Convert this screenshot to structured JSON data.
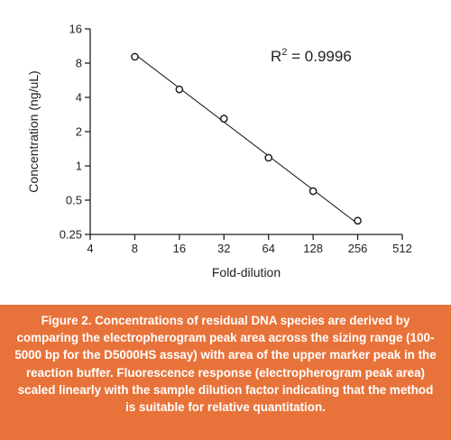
{
  "chart_data": {
    "type": "scatter",
    "x_scale": "log2",
    "y_scale": "log2",
    "xlabel": "Fold-dilution",
    "ylabel": "Concentration (ng/uL)",
    "xlim": [
      4,
      512
    ],
    "ylim": [
      0.25,
      16
    ],
    "x_ticks": [
      4,
      8,
      16,
      32,
      64,
      128,
      256,
      512
    ],
    "y_ticks": [
      0.25,
      0.5,
      1,
      2,
      4,
      8,
      16
    ],
    "x_tick_labels": [
      "4",
      "8",
      "16",
      "32",
      "64",
      "128",
      "256",
      "512"
    ],
    "y_tick_labels": [
      "0.25",
      "0.5",
      "1",
      "2",
      "4",
      "8",
      "16"
    ],
    "points": [
      {
        "x": 8,
        "y": 9.1
      },
      {
        "x": 16,
        "y": 4.7
      },
      {
        "x": 32,
        "y": 2.6
      },
      {
        "x": 64,
        "y": 1.18
      },
      {
        "x": 128,
        "y": 0.6
      },
      {
        "x": 256,
        "y": 0.33
      }
    ],
    "fit_line": {
      "x": [
        8,
        256
      ],
      "y": [
        9.6,
        0.31
      ]
    },
    "annotation": {
      "text": "R",
      "superscript": "2",
      "value_text": " = 0.9996"
    },
    "grid": false
  },
  "caption": "Figure 2. Concentrations of residual DNA species are derived by comparing the electropherogram peak area across the sizing range (100-5000 bp for the D5000HS assay) with area of the upper marker peak in the reaction buffer. Fluorescence response (electropherogram peak area) scaled linearly with the sample dilution factor indicating that the method is suitable for relative quantitation.",
  "colors": {
    "caption_background": "#e8733a",
    "caption_text": "#ffffff",
    "axis": "#222222"
  }
}
